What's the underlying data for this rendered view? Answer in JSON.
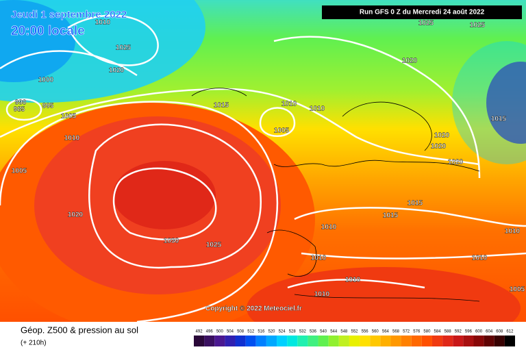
{
  "header": {
    "date": "Jeudi 1 septembre 2022",
    "time": "20:00 locale",
    "run": "Run GFS 0 Z du Mercredi 24 août 2022"
  },
  "isobars": [
    "1010",
    "1025",
    "1020",
    "1000",
    "990",
    "985",
    "995",
    "1005",
    "1010",
    "1005",
    "1020",
    "1030",
    "1025",
    "1015",
    "1010",
    "1010",
    "1005",
    "1025",
    "1025",
    "1020",
    "1015",
    "1020",
    "1020",
    "1020",
    "1015",
    "1015",
    "1010",
    "1010",
    "1010",
    "1010",
    "1010",
    "1005",
    "1010"
  ],
  "copyright": "Copyright © 2022 Meteociel.fr",
  "footer": {
    "title": "Géop. Z500 & pression au sol",
    "subtitle": "(+ 210h)"
  },
  "scale": {
    "ticks": [
      492,
      496,
      500,
      504,
      508,
      512,
      516,
      520,
      524,
      528,
      532,
      536,
      540,
      544,
      548,
      552,
      556,
      560,
      564,
      568,
      572,
      576,
      580,
      584,
      588,
      592,
      596,
      600,
      604,
      608,
      612
    ],
    "colors": [
      "#2a0838",
      "#3a1060",
      "#4a1890",
      "#3020b0",
      "#1030d0",
      "#0050f0",
      "#0080ff",
      "#00a8ff",
      "#00d0ff",
      "#00e8e0",
      "#20f0b0",
      "#40f080",
      "#60f050",
      "#90f030",
      "#c0f020",
      "#e8f000",
      "#ffe000",
      "#ffc800",
      "#ffb000",
      "#ff9800",
      "#ff8000",
      "#ff6800",
      "#ff5000",
      "#f03a10",
      "#e02818",
      "#c81818",
      "#a81010",
      "#880808",
      "#600404",
      "#380202",
      "#000000"
    ]
  }
}
